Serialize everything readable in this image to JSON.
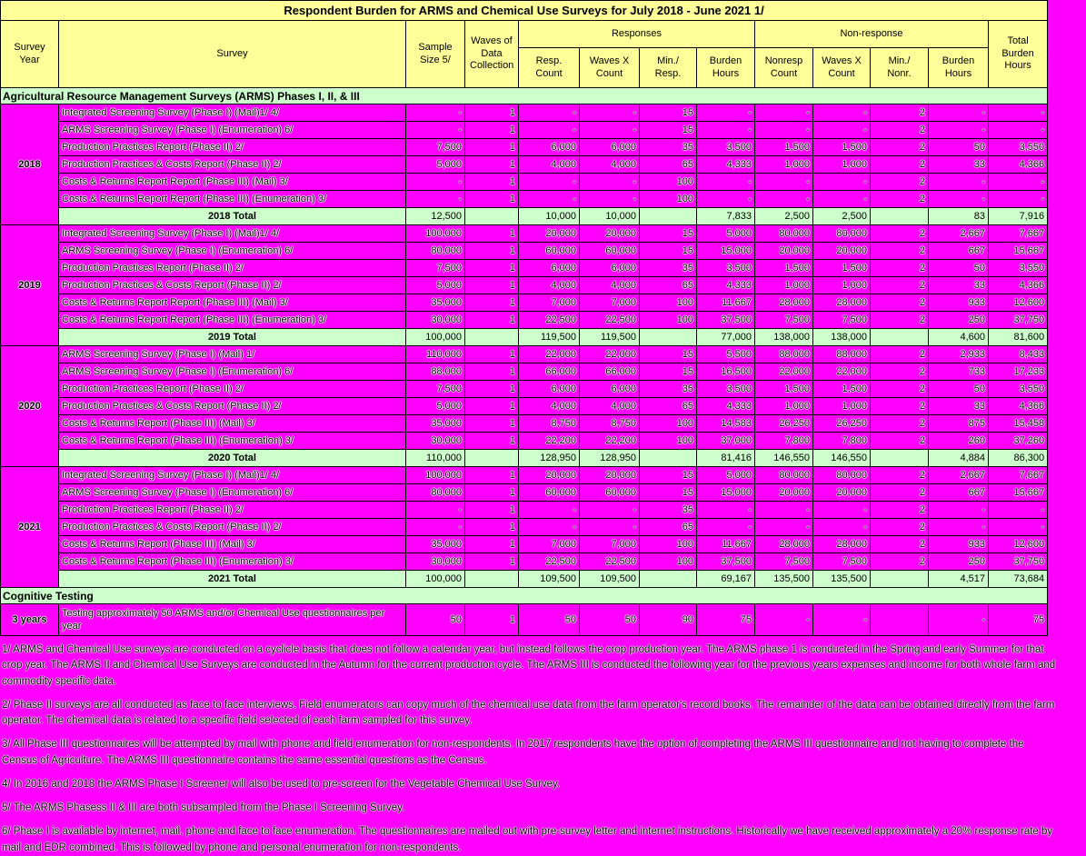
{
  "title": "Respondent Burden for ARMS and Chemical Use Surveys for July 2018 - June 2021 1/",
  "colors": {
    "background_magenta": "#FF00FF",
    "header_yellow": "#FFFF99",
    "section_green": "#CCFFCC",
    "border_black": "#000000"
  },
  "columns": {
    "survey_year": "Survey Year",
    "survey": "Survey",
    "sample_size": "Sample Size 5/",
    "waves": "Waves of Data Collection",
    "responses_group": "Responses",
    "nonresponse_group": "Non-response",
    "resp_count": "Resp. Count",
    "waves_x_count": "Waves X Count",
    "min_resp": "Min./ Resp.",
    "burden_hours": "Burden Hours",
    "nonresp_count": "Nonresp Count",
    "min_nonr": "Min./ Nonr.",
    "total_burden_hours": "Total Burden Hours"
  },
  "sections": [
    {
      "label": "Agricultural Resource Management Surveys (ARMS) Phases I, II, & III",
      "groups": [
        {
          "year": "2018",
          "rows": [
            [
              "Integrated Screening Survey (Phase I) (Mail)1/  4/",
              "-",
              "1",
              "-",
              "-",
              "15",
              "-",
              "-",
              "-",
              "2",
              "-",
              "-"
            ],
            [
              "ARMS Screening Survey (Phase I) (Enumeration) 6/",
              "-",
              "1",
              "-",
              "-",
              "15",
              "-",
              "-",
              "-",
              "2",
              "-",
              "-"
            ],
            [
              "Production Practices Report (Phase II) 2/",
              "7,500",
              "1",
              "6,000",
              "6,000",
              "35",
              "3,500",
              "1,500",
              "1,500",
              "2",
              "50",
              "3,550"
            ],
            [
              "Production Practices & Costs Report (Phase II) 2/",
              "5,000",
              "1",
              "4,000",
              "4,000",
              "65",
              "4,333",
              "1,000",
              "1,000",
              "2",
              "33",
              "4,366"
            ],
            [
              "Costs & Returns Report Report (Phase III) (Mail) 3/",
              "-",
              "1",
              "-",
              "-",
              "100",
              "-",
              "-",
              "-",
              "2",
              "-",
              "-"
            ],
            [
              "Costs & Returns Report Report (Phase III) (Enumeration) 3/",
              "-",
              "1",
              "-",
              "-",
              "100",
              "-",
              "-",
              "-",
              "2",
              "-",
              "-"
            ]
          ],
          "total_label": "2018 Total",
          "total": [
            "12,500",
            "",
            "10,000",
            "10,000",
            "",
            "7,833",
            "2,500",
            "2,500",
            "",
            "83",
            "7,916"
          ]
        },
        {
          "year": "2019",
          "rows": [
            [
              "Integrated Screening Survey (Phase I) (Mail)1/  4/",
              "100,000",
              "1",
              "20,000",
              "20,000",
              "15",
              "5,000",
              "80,000",
              "80,000",
              "2",
              "2,667",
              "7,667"
            ],
            [
              "ARMS Screening Survey (Phase I) (Enumeration) 6/",
              "80,000",
              "1",
              "60,000",
              "60,000",
              "15",
              "15,000",
              "20,000",
              "20,000",
              "2",
              "667",
              "15,667"
            ],
            [
              "Production Practices Report (Phase II) 2/",
              "7,500",
              "1",
              "6,000",
              "6,000",
              "35",
              "3,500",
              "1,500",
              "1,500",
              "2",
              "50",
              "3,550"
            ],
            [
              "Production Practices & Costs Report (Phase II) 2/",
              "5,000",
              "1",
              "4,000",
              "4,000",
              "65",
              "4,333",
              "1,000",
              "1,000",
              "2",
              "33",
              "4,366"
            ],
            [
              "Costs & Returns Report Report (Phase III) (Mail) 3/",
              "35,000",
              "1",
              "7,000",
              "7,000",
              "100",
              "11,667",
              "28,000",
              "28,000",
              "2",
              "933",
              "12,600"
            ],
            [
              "Costs & Returns Report Report (Phase III) (Enumeration) 3/",
              "30,000",
              "1",
              "22,500",
              "22,500",
              "100",
              "37,500",
              "7,500",
              "7,500",
              "2",
              "250",
              "37,750"
            ]
          ],
          "total_label": "2019 Total",
          "total": [
            "100,000",
            "",
            "119,500",
            "119,500",
            "",
            "77,000",
            "138,000",
            "138,000",
            "",
            "4,600",
            "81,600"
          ]
        },
        {
          "year": "2020",
          "rows": [
            [
              "ARMS Screening Survey (Phase I) (Mail) 1/",
              "110,000",
              "1",
              "22,000",
              "22,000",
              "15",
              "5,500",
              "88,000",
              "88,000",
              "2",
              "2,933",
              "8,433"
            ],
            [
              "ARMS Screening Survey (Phase I) (Enumeration) 6/",
              "88,000",
              "1",
              "66,000",
              "66,000",
              "15",
              "16,500",
              "22,000",
              "22,000",
              "2",
              "733",
              "17,233"
            ],
            [
              "Production Practices Report (Phase II) 2/",
              "7,500",
              "1",
              "6,000",
              "6,000",
              "35",
              "3,500",
              "1,500",
              "1,500",
              "2",
              "50",
              "3,550"
            ],
            [
              "Production Practices & Costs Report (Phase II) 2/",
              "5,000",
              "1",
              "4,000",
              "4,000",
              "65",
              "4,333",
              "1,000",
              "1,000",
              "2",
              "33",
              "4,366"
            ],
            [
              "Costs & Returns Report (Phase III) (Mail) 3/",
              "35,000",
              "1",
              "8,750",
              "8,750",
              "100",
              "14,583",
              "26,250",
              "26,250",
              "2",
              "875",
              "15,458"
            ],
            [
              "Costs & Returns Report (Phase III) (Enumeration) 3/",
              "30,000",
              "1",
              "22,200",
              "22,200",
              "100",
              "37,000",
              "7,800",
              "7,800",
              "2",
              "260",
              "37,260"
            ]
          ],
          "total_label": "2020 Total",
          "total": [
            "110,000",
            "",
            "128,950",
            "128,950",
            "",
            "81,416",
            "146,550",
            "146,550",
            "",
            "4,884",
            "86,300"
          ]
        },
        {
          "year": "2021",
          "rows": [
            [
              "Integrated Screening Survey (Phase I) (Mail)1/  4/",
              "100,000",
              "1",
              "20,000",
              "20,000",
              "15",
              "5,000",
              "80,000",
              "80,000",
              "2",
              "2,667",
              "7,667"
            ],
            [
              "ARMS Screening Survey (Phase I) (Enumeration) 6/",
              "80,000",
              "1",
              "60,000",
              "60,000",
              "15",
              "15,000",
              "20,000",
              "20,000",
              "2",
              "667",
              "15,667"
            ],
            [
              "Production Practices Report (Phase II) 2/",
              "-",
              "1",
              "-",
              "-",
              "35",
              "-",
              "-",
              "-",
              "2",
              "-",
              "-"
            ],
            [
              "Production Practices & Costs Report (Phase II) 2/",
              "-",
              "1",
              "-",
              "-",
              "65",
              "-",
              "-",
              "-",
              "2",
              "-",
              "-"
            ],
            [
              "Costs & Returns Report (Phase III) (Mail) 3/",
              "35,000",
              "1",
              "7,000",
              "7,000",
              "100",
              "11,667",
              "28,000",
              "28,000",
              "2",
              "933",
              "12,600"
            ],
            [
              "Costs & Returns Report (Phase III) (Enumeration) 3/",
              "30,000",
              "1",
              "22,500",
              "22,500",
              "100",
              "37,500",
              "7,500",
              "7,500",
              "2",
              "250",
              "37,750"
            ]
          ],
          "total_label": "2021 Total",
          "total": [
            "100,000",
            "",
            "109,500",
            "109,500",
            "",
            "69,167",
            "135,500",
            "135,500",
            "",
            "4,517",
            "73,684"
          ]
        }
      ]
    },
    {
      "label": "Cognitive Testing",
      "groups": [
        {
          "year": "3 years",
          "rows": [
            [
              "Testing approximately 50 ARMS and/or Chemical Use questionnaires per year",
              "50",
              "1",
              "50",
              "50",
              "90",
              "75",
              "-",
              "-",
              "",
              "-",
              "75"
            ]
          ],
          "total_label": null,
          "total": null
        }
      ]
    }
  ],
  "footnotes": [
    "1/ ARMS and Chemical Use surveys are conducted on a cyclicle basis that does not follow a calendar year, but instead follows the crop production year.  The ARMS phase 1 is conducted in the Spring and early Summer for that crop year.  The ARMS II and Chemical Use Surveys are conducted in the Autumn for the current production cycle. The ARMS III is conducted the following year for the previous years expenses and income for both whole farm and commodity specific data.",
    "2/ Phase II surveys are all conducted as face to face interviews. Field enumerators can copy much of the chemical use data from the farm operator's record books.  The remainder of the data can be obtained directly from the farm operator.   The chemical data is related to a specific field selected of each farm sampled for this survey.",
    "3/ All Phase III questionnaires will be attempted by mail with phone and field enumeration for non-respondents.  In 2017 respondents have the option of completing the ARMS III questionnaire and not having to complete the Census of Agriculture. The ARMS III questionnaire contains the same essential questions as the Census.",
    "4/ In 2016 and 2018 the ARMS Phase I Screener will also be used to pre-screen for the Vegetable Chemical Use Survey.",
    "5/ The ARMS Phasess II & III are both subsampled from the Phase I Screening Survey.",
    "6/ Phase I is available by internet, mail, phone and face to face enumeration. The questionnaires are mailed out with pre-survey letter and internet instructions.  Historically we have received approximately a 20% response rate by mail and EDR combined.  This is followed by phone and personal enumeration for non-respondents."
  ]
}
